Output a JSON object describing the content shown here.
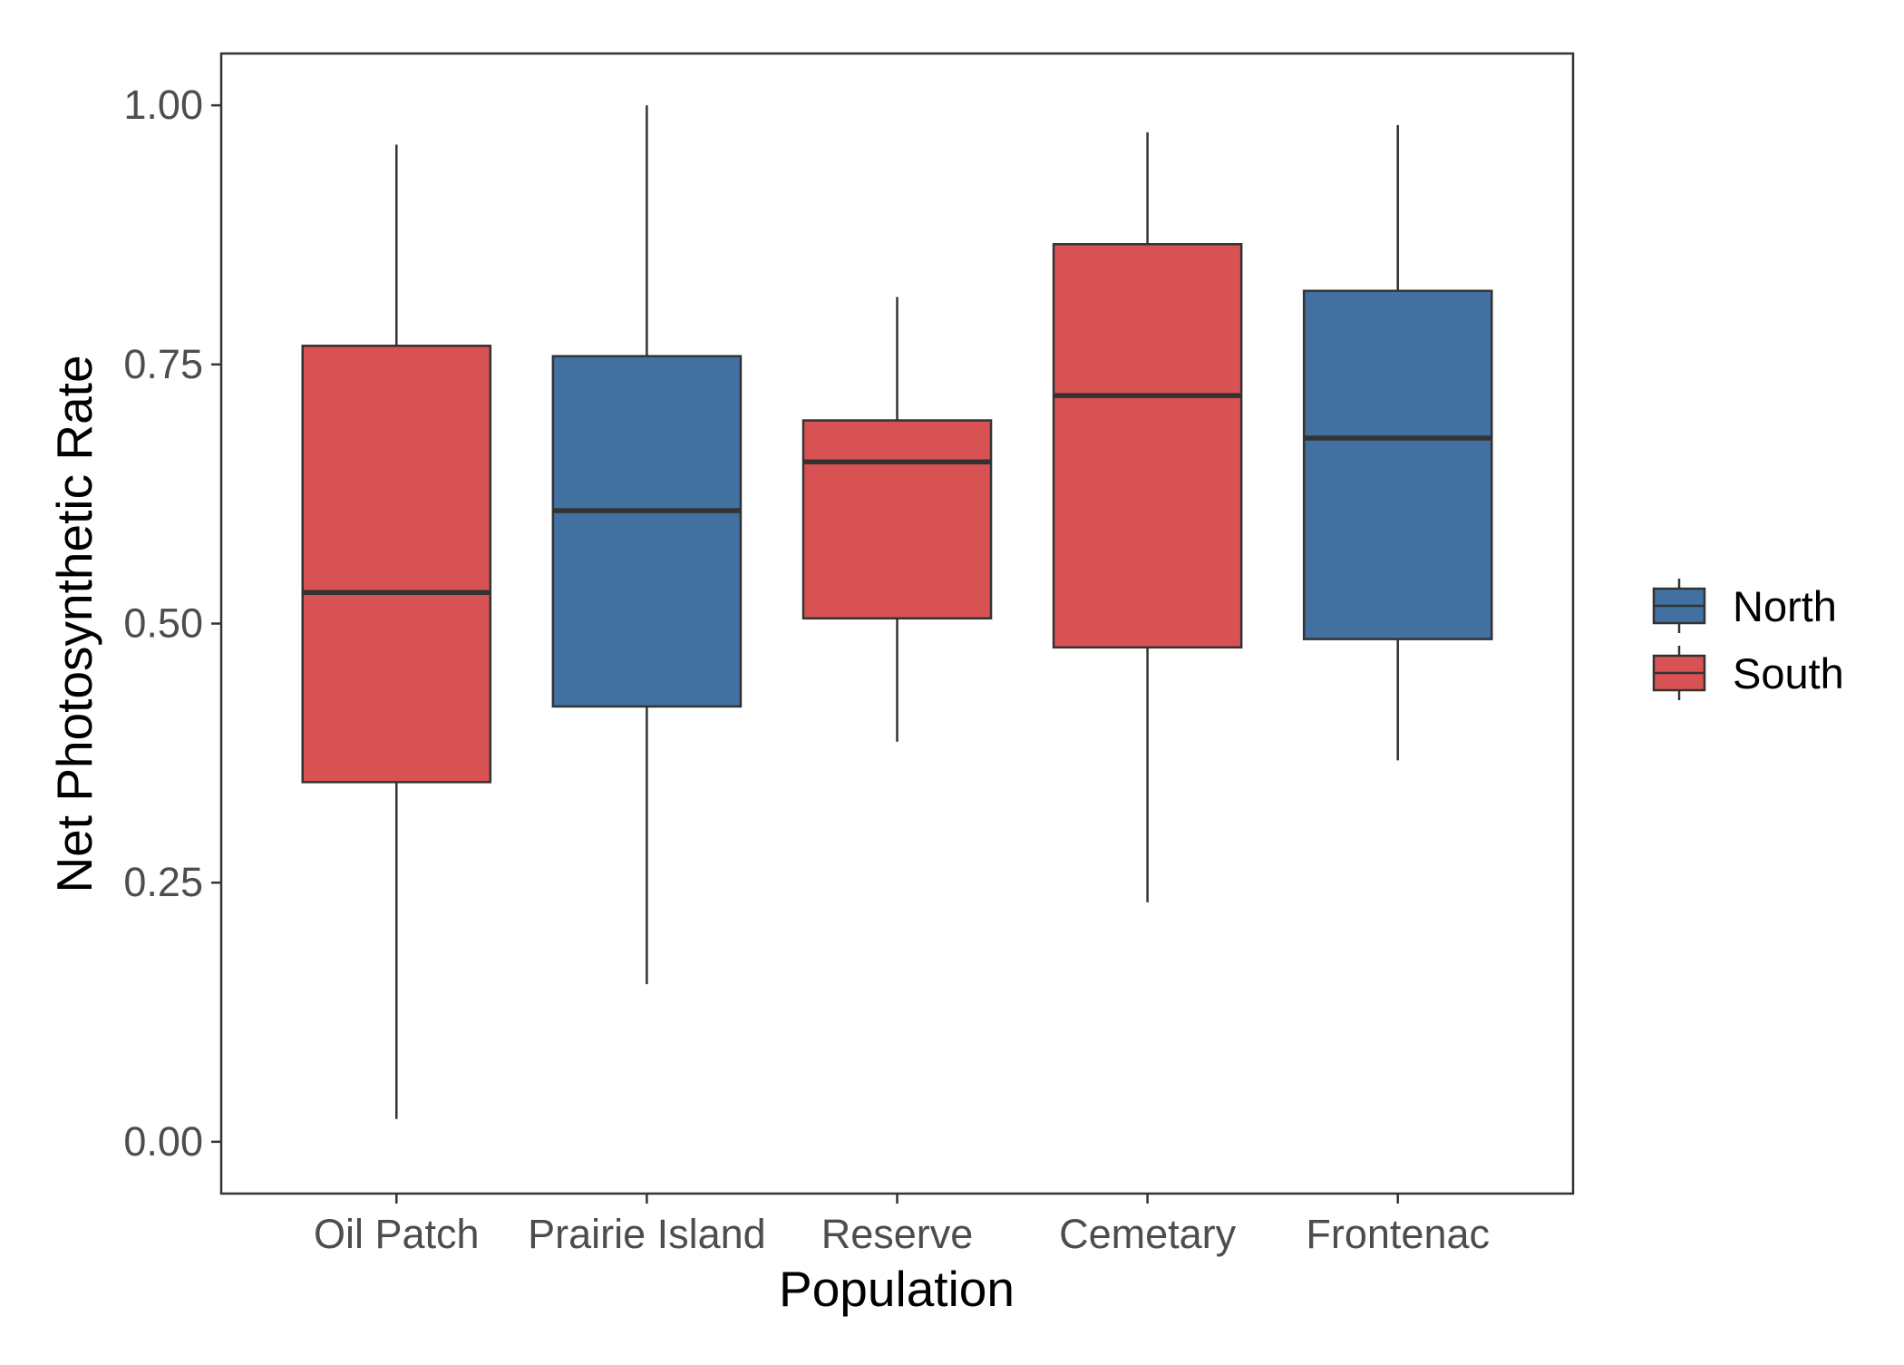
{
  "chart_data": {
    "type": "boxplot",
    "title": "",
    "xlabel": "Population",
    "ylabel": "Net Photosynthetic Rate",
    "ylim": [
      -0.05,
      1.05
    ],
    "yticks": [
      0.0,
      0.25,
      0.5,
      0.75,
      1.0
    ],
    "ytick_labels": [
      "0.00",
      "0.25",
      "0.50",
      "0.75",
      "1.00"
    ],
    "grid": false,
    "legend": {
      "placement": "right",
      "entries": [
        {
          "label": "North",
          "color": "#4170A1"
        },
        {
          "label": "South",
          "color": "#D95253"
        }
      ]
    },
    "categories": [
      "Oil Patch",
      "Prairie Island",
      "Reserve",
      "Cemetary",
      "Frontenac"
    ],
    "boxes": [
      {
        "category": "Oil Patch",
        "group": "South",
        "whisker_low": 0.022,
        "q1": 0.347,
        "median": 0.53,
        "q3": 0.768,
        "whisker_high": 0.962
      },
      {
        "category": "Prairie Island",
        "group": "North",
        "whisker_low": 0.152,
        "q1": 0.42,
        "median": 0.609,
        "q3": 0.758,
        "whisker_high": 1.0
      },
      {
        "category": "Reserve",
        "group": "South",
        "whisker_low": 0.386,
        "q1": 0.505,
        "median": 0.656,
        "q3": 0.696,
        "whisker_high": 0.815
      },
      {
        "category": "Cemetary",
        "group": "South",
        "whisker_low": 0.231,
        "q1": 0.477,
        "median": 0.72,
        "q3": 0.866,
        "whisker_high": 0.974
      },
      {
        "category": "Frontenac",
        "group": "North",
        "whisker_low": 0.368,
        "q1": 0.485,
        "median": 0.679,
        "q3": 0.821,
        "whisker_high": 0.981
      }
    ],
    "colors": {
      "outline": "#333333",
      "panel_border": "#333333",
      "tick": "#333333"
    }
  }
}
